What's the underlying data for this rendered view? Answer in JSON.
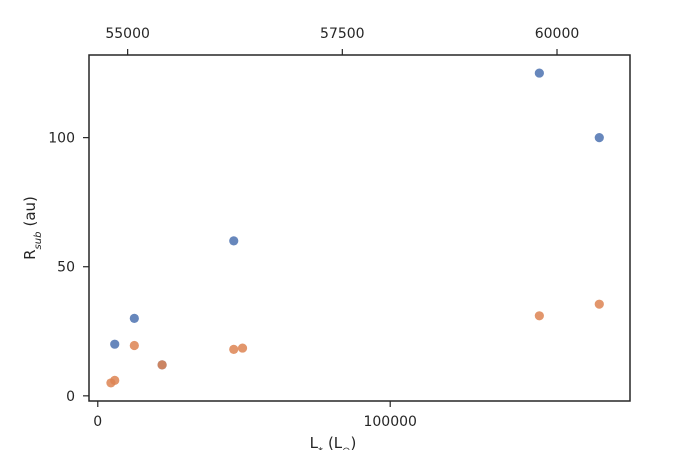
{
  "chart_data": {
    "type": "scatter",
    "title": "",
    "xlabel": "L",
    "xlabel_sub": "*",
    "xlabel_unit": "(L",
    "xlabel_unit_sub": "⊙",
    "xlabel_unit_close": ")",
    "ylabel": "R",
    "ylabel_sub": "sub",
    "ylabel_unit": "(au)",
    "xlim": [
      -3000,
      182000
    ],
    "ylim": [
      -2,
      132
    ],
    "top_xlim": [
      54550,
      60850
    ],
    "xticks": [
      0,
      100000
    ],
    "xtick_labels": [
      "0",
      "100000"
    ],
    "yticks": [
      0,
      50,
      100
    ],
    "ytick_labels": [
      "0",
      "50",
      "100"
    ],
    "top_xticks": [
      55000,
      57500,
      60000
    ],
    "top_xtick_labels": [
      "55000",
      "57500",
      "60000"
    ],
    "grid": false,
    "series": [
      {
        "color": "#4c72b0",
        "points": [
          {
            "x": 5800,
            "y": 20
          },
          {
            "x": 12500,
            "y": 30
          },
          {
            "x": 22000,
            "y": 12
          },
          {
            "x": 46500,
            "y": 60
          },
          {
            "x": 151000,
            "y": 125
          },
          {
            "x": 171500,
            "y": 100
          }
        ]
      },
      {
        "color": "#dd8452",
        "points": [
          {
            "x": 4500,
            "y": 5
          },
          {
            "x": 5800,
            "y": 6
          },
          {
            "x": 12500,
            "y": 19.5
          },
          {
            "x": 22000,
            "y": 12
          },
          {
            "x": 46500,
            "y": 18
          },
          {
            "x": 49500,
            "y": 18.5
          },
          {
            "x": 151000,
            "y": 31
          },
          {
            "x": 171500,
            "y": 35.5
          }
        ]
      }
    ]
  }
}
